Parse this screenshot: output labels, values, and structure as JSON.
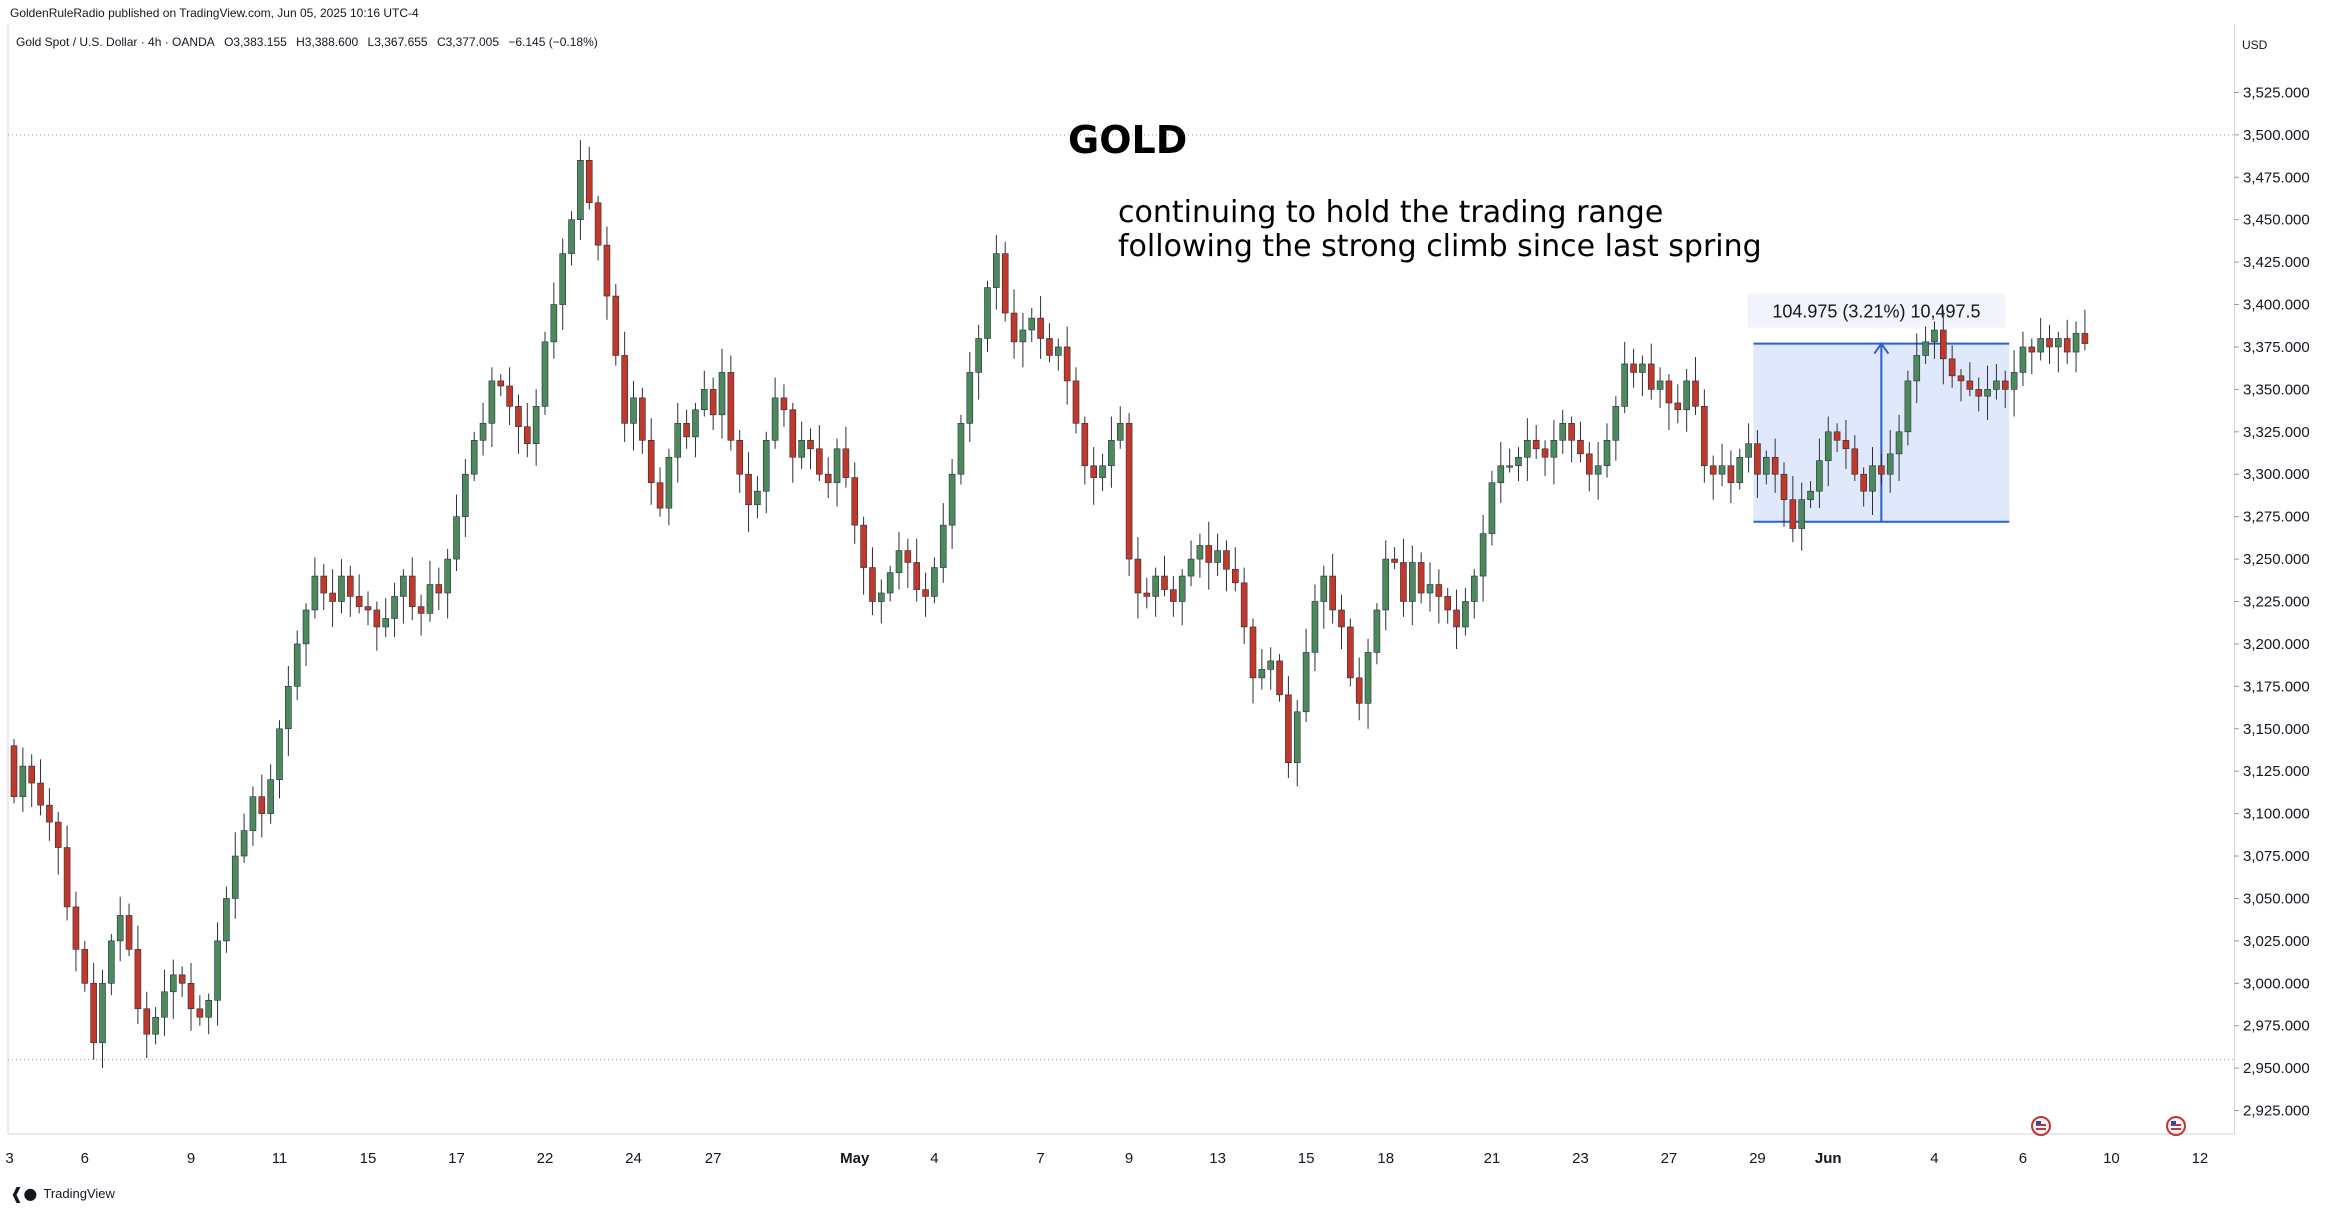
{
  "header": {
    "publisher_line": "GoldenRuleRadio published on TradingView.com, Jun 05, 2025 10:16 UTC-4",
    "symbol": "Gold Spot / U.S. Dollar · 4h · OANDA",
    "ohlc": {
      "open": "O3,383.155",
      "high": "H3,388.600",
      "low": "L3,367.655",
      "close": "C3,377.005",
      "change": "−6.145 (−0.18%)"
    }
  },
  "axis": {
    "currency": "USD"
  },
  "footer": {
    "brand": "TradingView"
  },
  "colors": {
    "up": "#4c8a5e",
    "down": "#c0392b",
    "range_fill": "#dbe4fb",
    "range_line": "#2c5fcf"
  },
  "chart_data": {
    "type": "candlestick",
    "title": "GOLD",
    "annotation": [
      "continuing to hold the trading range",
      "following the strong climb since last spring"
    ],
    "measure_label": "104.975 (3.21%) 10,497.5",
    "ylim": [
      2900,
      3550
    ],
    "y_ticks": [
      2925,
      2950,
      2975,
      3000,
      3025,
      3050,
      3075,
      3100,
      3125,
      3150,
      3175,
      3200,
      3225,
      3250,
      3275,
      3300,
      3325,
      3350,
      3375,
      3400,
      3425,
      3450,
      3475,
      3500,
      3525
    ],
    "y_tick_labels": [
      "2,925.000",
      "2,950.000",
      "2,975.000",
      "3,000.000",
      "3,025.000",
      "3,050.000",
      "3,075.000",
      "3,100.000",
      "3,125.000",
      "3,150.000",
      "3,175.000",
      "3,200.000",
      "3,225.000",
      "3,250.000",
      "3,275.000",
      "3,300.000",
      "3,325.000",
      "3,350.000",
      "3,375.000",
      "3,400.000",
      "3,425.000",
      "3,450.000",
      "3,475.000",
      "3,500.000",
      "3,525.000"
    ],
    "x_ticks": [
      {
        "label": "3",
        "bar": -0.5,
        "bold": false
      },
      {
        "label": "6",
        "bar": 8,
        "bold": false
      },
      {
        "label": "9",
        "bar": 20,
        "bold": false
      },
      {
        "label": "11",
        "bar": 30,
        "bold": false
      },
      {
        "label": "15",
        "bar": 40,
        "bold": false
      },
      {
        "label": "17",
        "bar": 50,
        "bold": false
      },
      {
        "label": "22",
        "bar": 60,
        "bold": false
      },
      {
        "label": "24",
        "bar": 70,
        "bold": false
      },
      {
        "label": "27",
        "bar": 79,
        "bold": false
      },
      {
        "label": "May",
        "bar": 95,
        "bold": true
      },
      {
        "label": "4",
        "bar": 104,
        "bold": false
      },
      {
        "label": "7",
        "bar": 116,
        "bold": false
      },
      {
        "label": "9",
        "bar": 126,
        "bold": false
      },
      {
        "label": "13",
        "bar": 136,
        "bold": false
      },
      {
        "label": "15",
        "bar": 146,
        "bold": false
      },
      {
        "label": "18",
        "bar": 155,
        "bold": false
      },
      {
        "label": "21",
        "bar": 167,
        "bold": false
      },
      {
        "label": "23",
        "bar": 177,
        "bold": false
      },
      {
        "label": "27",
        "bar": 187,
        "bold": false
      },
      {
        "label": "29",
        "bar": 197,
        "bold": false
      },
      {
        "label": "Jun",
        "bar": 205,
        "bold": true
      },
      {
        "label": "4",
        "bar": 217,
        "bold": false
      },
      {
        "label": "6",
        "bar": 227,
        "bold": false
      },
      {
        "label": "10",
        "bar": 237,
        "bold": false
      },
      {
        "label": "12",
        "bar": 247,
        "bold": false
      }
    ],
    "reference_lines": [
      3500,
      2955
    ],
    "range_box": {
      "bar_start": 197,
      "bar_end": 225,
      "low": 3272,
      "high": 3377,
      "arrow_bar": 211
    },
    "closes": [
      3110,
      3128,
      3118,
      3105,
      3095,
      3080,
      3045,
      3020,
      3000,
      2965,
      3000,
      3025,
      3040,
      3020,
      2985,
      2970,
      2980,
      2995,
      3005,
      3000,
      2985,
      2980,
      2990,
      3025,
      3050,
      3075,
      3090,
      3110,
      3100,
      3120,
      3150,
      3175,
      3200,
      3220,
      3240,
      3230,
      3225,
      3240,
      3228,
      3222,
      3220,
      3210,
      3215,
      3228,
      3240,
      3222,
      3218,
      3235,
      3230,
      3250,
      3275,
      3300,
      3320,
      3330,
      3355,
      3352,
      3340,
      3328,
      3318,
      3340,
      3378,
      3400,
      3430,
      3450,
      3485,
      3460,
      3435,
      3405,
      3370,
      3330,
      3345,
      3320,
      3295,
      3280,
      3310,
      3330,
      3322,
      3338,
      3350,
      3335,
      3360,
      3320,
      3300,
      3282,
      3290,
      3320,
      3345,
      3338,
      3310,
      3320,
      3315,
      3300,
      3295,
      3315,
      3298,
      3270,
      3245,
      3225,
      3230,
      3242,
      3255,
      3248,
      3232,
      3228,
      3245,
      3270,
      3300,
      3330,
      3360,
      3380,
      3410,
      3430,
      3395,
      3378,
      3385,
      3392,
      3380,
      3370,
      3375,
      3355,
      3330,
      3305,
      3298,
      3305,
      3320,
      3330,
      3250,
      3230,
      3228,
      3240,
      3232,
      3225,
      3240,
      3250,
      3258,
      3248,
      3255,
      3244,
      3236,
      3210,
      3180,
      3185,
      3190,
      3170,
      3130,
      3160,
      3195,
      3225,
      3240,
      3220,
      3210,
      3180,
      3165,
      3195,
      3220,
      3250,
      3248,
      3225,
      3248,
      3230,
      3235,
      3228,
      3220,
      3210,
      3225,
      3240,
      3265,
      3295,
      3305,
      3305,
      3310,
      3320,
      3315,
      3310,
      3320,
      3330,
      3320,
      3312,
      3300,
      3305,
      3320,
      3340,
      3365,
      3360,
      3365,
      3350,
      3355,
      3342,
      3338,
      3355,
      3340,
      3305,
      3300,
      3305,
      3295,
      3310,
      3318,
      3300,
      3310,
      3300,
      3285,
      3268,
      3285,
      3290,
      3308,
      3325,
      3320,
      3315,
      3300,
      3290,
      3305,
      3300,
      3312,
      3325,
      3355,
      3370,
      3378,
      3385,
      3368,
      3358,
      3355,
      3350,
      3346,
      3350,
      3355,
      3350,
      3360,
      3375,
      3372,
      3380,
      3375,
      3380,
      3372,
      3383,
      3377
    ]
  }
}
